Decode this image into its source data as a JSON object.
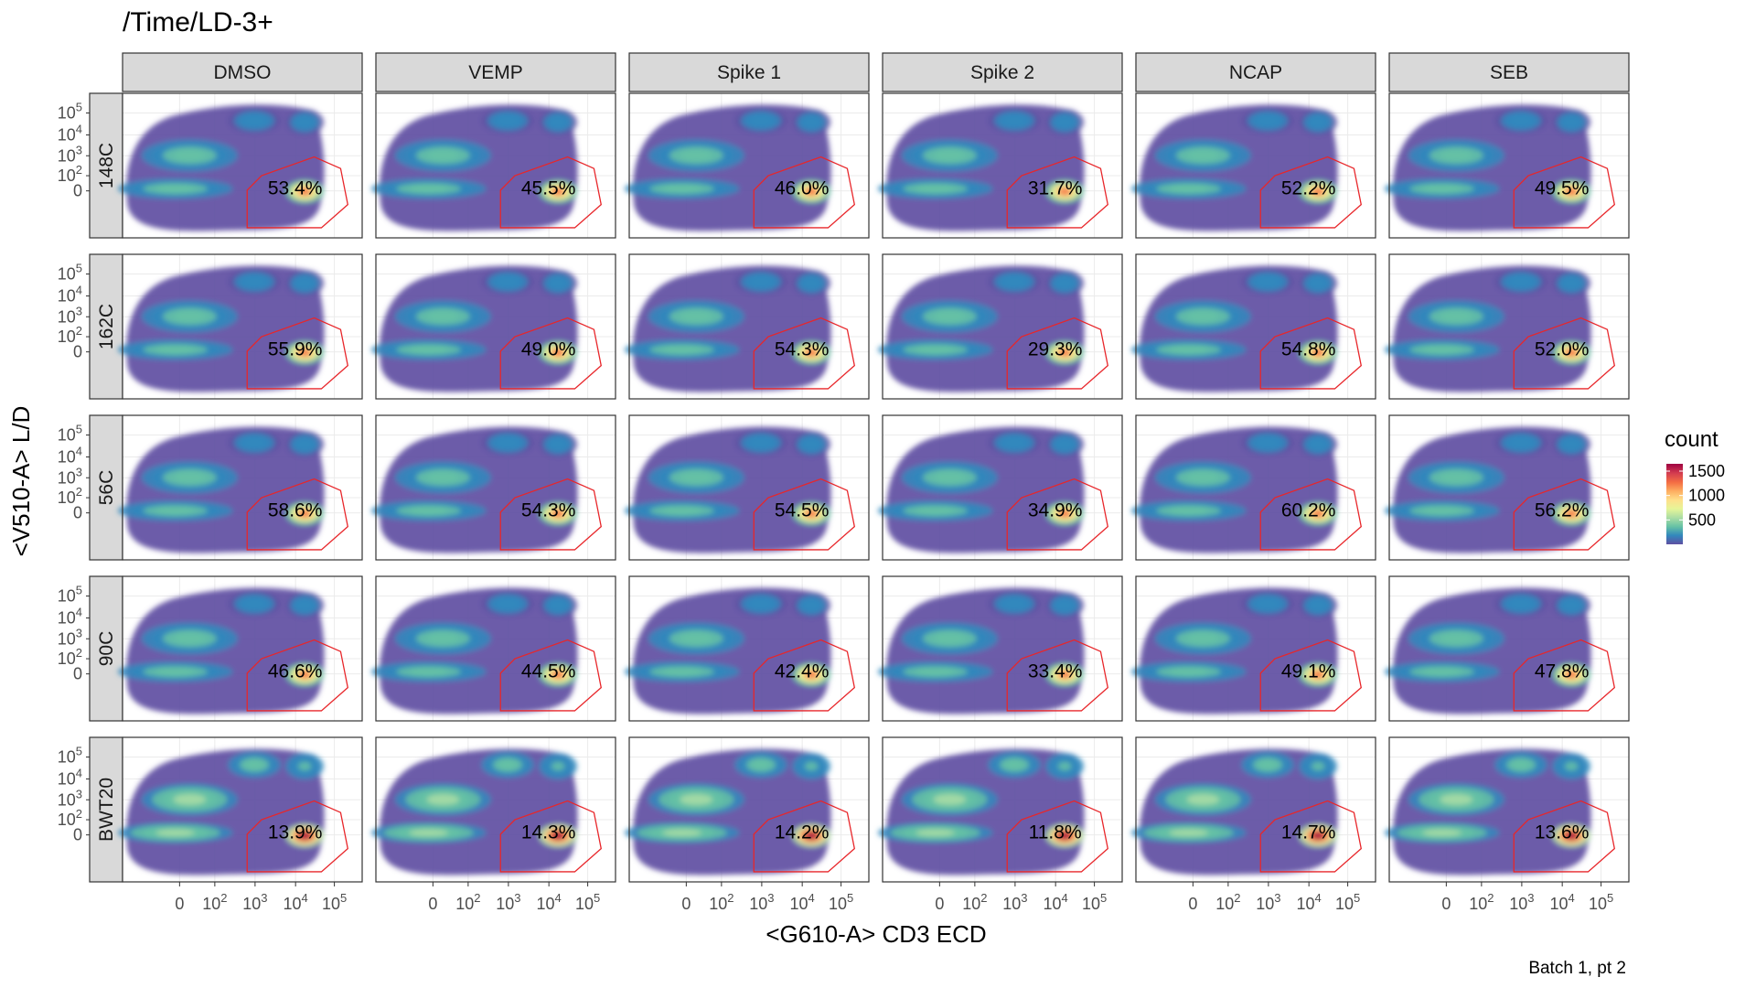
{
  "chart_data": {
    "type": "heatmap",
    "title": "/Time/LD-3+",
    "xlabel": "<G610-A> CD3 ECD",
    "ylabel": "<V510-A> L/D",
    "caption": "Batch 1, pt 2",
    "columns": [
      "DMSO",
      "VEMP",
      "Spike 1",
      "Spike 2",
      "NCAP",
      "SEB"
    ],
    "rows": [
      "148C",
      "162C",
      "56C",
      "90C",
      "BWT20"
    ],
    "x_ticks": [
      {
        "label": "0"
      },
      {
        "label": "10",
        "exp": "2"
      },
      {
        "label": "10",
        "exp": "3"
      },
      {
        "label": "10",
        "exp": "4"
      },
      {
        "label": "10",
        "exp": "5"
      }
    ],
    "y_ticks": [
      {
        "label": "0"
      },
      {
        "label": "10",
        "exp": "2"
      },
      {
        "label": "10",
        "exp": "3"
      },
      {
        "label": "10",
        "exp": "4"
      },
      {
        "label": "10",
        "exp": "5"
      }
    ],
    "gate_percent": [
      [
        "53.4%",
        "45.5%",
        "46.0%",
        "31.7%",
        "52.2%",
        "49.5%"
      ],
      [
        "55.9%",
        "49.0%",
        "54.3%",
        "29.3%",
        "54.8%",
        "52.0%"
      ],
      [
        "58.6%",
        "54.3%",
        "54.5%",
        "34.9%",
        "60.2%",
        "56.2%"
      ],
      [
        "46.6%",
        "44.5%",
        "42.4%",
        "33.4%",
        "49.1%",
        "47.8%"
      ],
      [
        "13.9%",
        "14.3%",
        "14.2%",
        "11.8%",
        "14.7%",
        "13.6%"
      ]
    ],
    "legend": {
      "title": "count",
      "ticks": [
        "1500",
        "1000",
        "500"
      ],
      "tick_values": [
        1500,
        1000,
        500
      ],
      "range": [
        0,
        1650
      ]
    },
    "gate_color": "#e8262a",
    "palette": [
      "#5e4fa2",
      "#3288bd",
      "#66c2a5",
      "#abdda4",
      "#e6f598",
      "#fee08b",
      "#fdae61",
      "#f46d43",
      "#d53e4f",
      "#9e0142"
    ]
  }
}
